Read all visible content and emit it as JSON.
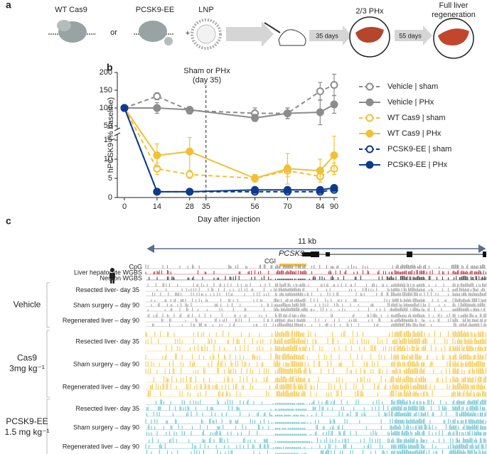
{
  "panel_a": {
    "label": "a",
    "wt_cas9": "WT Cas9",
    "or": "or",
    "pcsk9_ee": "PCSK9-EE",
    "plus": "+",
    "lnp": "LNP",
    "step1": "35 days",
    "phx": "2/3 PHx",
    "step2": "55 days",
    "regeneration": [
      "Full liver",
      "regeneration"
    ]
  },
  "chart_data": {
    "type": "line",
    "panel": "b",
    "y_label": "hPCSK9 (% baseline)",
    "x_label": "Day after injection",
    "annotation": [
      "Sham or PHx",
      "(day 35)"
    ],
    "annotation_x": 35,
    "x": [
      0,
      14,
      28,
      56,
      70,
      84,
      90
    ],
    "xlim": [
      0,
      90
    ],
    "xticks": [
      0,
      14,
      28,
      35,
      56,
      70,
      84,
      90
    ],
    "ylim_upper": [
      40,
      200
    ],
    "yticks_upper": [
      50,
      100,
      150,
      200
    ],
    "ylim_lower": [
      0,
      16.5
    ],
    "yticks_lower": [
      0,
      5,
      10,
      15
    ],
    "series": [
      {
        "name": "Vehicle | sham",
        "color": "#8c8c8c",
        "dashed": true,
        "filled": false,
        "values": [
          100,
          133,
          93,
          85,
          85,
          147,
          165
        ],
        "errors": [
          0,
          10,
          10,
          15,
          15,
          25,
          30
        ]
      },
      {
        "name": "Vehicle | PHx",
        "color": "#8c8c8c",
        "dashed": false,
        "filled": true,
        "values": [
          100,
          100,
          95,
          72,
          85,
          88,
          110
        ],
        "errors": [
          0,
          15,
          8,
          10,
          15,
          35,
          25
        ]
      },
      {
        "name": "WT Cas9 | sham",
        "color": "#f2c037",
        "dashed": true,
        "filled": false,
        "values": [
          100,
          7.5,
          6,
          5,
          7,
          5.5,
          7.5
        ],
        "errors": [
          0,
          1.5,
          1,
          0.8,
          1.5,
          1.5,
          1.5
        ]
      },
      {
        "name": "WT Cas9 | PHx",
        "color": "#f2c037",
        "dashed": false,
        "filled": true,
        "values": [
          100,
          11,
          12,
          5,
          7.5,
          7,
          11
        ],
        "errors": [
          0,
          3,
          5,
          1,
          4,
          3,
          5
        ]
      },
      {
        "name": "PCSK9-EE | sham",
        "color": "#0d3a8c",
        "dashed": true,
        "filled": false,
        "values": [
          100,
          1.5,
          1.5,
          1.5,
          1.5,
          1.5,
          2
        ],
        "errors": [
          0,
          0.3,
          0.3,
          0.3,
          0.3,
          0.3,
          0.4
        ]
      },
      {
        "name": "PCSK9-EE | PHx",
        "color": "#0d3a8c",
        "dashed": false,
        "filled": true,
        "values": [
          100,
          1.5,
          1.5,
          2,
          2,
          2,
          2.5
        ],
        "errors": [
          0,
          0.4,
          0.3,
          0.4,
          0.4,
          0.4,
          0.6
        ]
      }
    ]
  },
  "panel_c": {
    "label": "c",
    "scale": "11 kb",
    "gene": "PCSK9",
    "cgi": "CGI",
    "reference_tracks": [
      {
        "name": "CpG",
        "color": "#888888"
      },
      {
        "name": "Liver hepatocyte WGBS",
        "color": "#b0182a"
      },
      {
        "name": "Neuron WGBS",
        "color": "#222222"
      }
    ],
    "groups": [
      {
        "name": [
          "Vehicle"
        ],
        "color": "#9a9a9a",
        "conditions": [
          "Resected liver- day 35",
          "Sham surgery – day 90",
          "Regenerated liver – day 90"
        ]
      },
      {
        "name": [
          "Cas9",
          "3mg kg⁻¹"
        ],
        "color": "#f2c037",
        "conditions": [
          "Resected liver- day 35",
          "Sham surgery – day 90",
          "Regenerated liver – day 90"
        ]
      },
      {
        "name": [
          "PCSK9-EE",
          "1.5 mg kg⁻¹"
        ],
        "color": "#5ab9c9",
        "conditions": [
          "Resected liver- day 35",
          "Sham surgery – day 90",
          "Regenerated liver – day 90"
        ]
      }
    ]
  }
}
